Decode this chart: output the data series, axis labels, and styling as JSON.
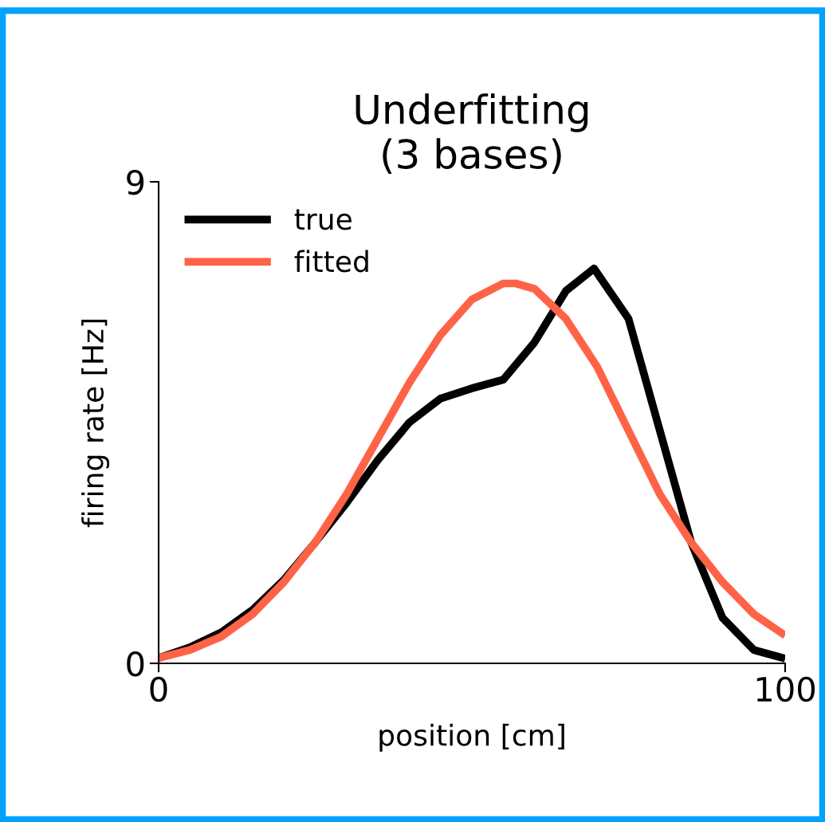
{
  "chart_data": {
    "type": "line",
    "title": "Underfitting\n(3 bases)",
    "xlabel": "position [cm]",
    "ylabel": "firing rate [Hz]",
    "xlim": [
      0,
      100
    ],
    "ylim": [
      0,
      9
    ],
    "xticks": [
      0,
      100
    ],
    "yticks": [
      0,
      9
    ],
    "grid": false,
    "legend": "top left",
    "marker": "none",
    "line_style": "solid",
    "series": [
      {
        "name": "true",
        "color": "#000000",
        "x": [
          0,
          5,
          10,
          15,
          20,
          25,
          30,
          35,
          40,
          45,
          50,
          55,
          60,
          65,
          69.5,
          75,
          80,
          85,
          90,
          95,
          100
        ],
        "values": [
          0.1,
          0.3,
          0.58,
          1.0,
          1.56,
          2.26,
          3.0,
          3.8,
          4.5,
          4.95,
          5.14,
          5.3,
          6.0,
          6.96,
          7.38,
          6.44,
          4.35,
          2.26,
          0.85,
          0.25,
          0.09
        ]
      },
      {
        "name": "fitted",
        "color": "#ff6347",
        "x": [
          0,
          5,
          10,
          15,
          20,
          25,
          30,
          35,
          40,
          45,
          50,
          55,
          57,
          60,
          65,
          70,
          75,
          80,
          85,
          90,
          95,
          100
        ],
        "values": [
          0.1,
          0.25,
          0.5,
          0.92,
          1.52,
          2.26,
          3.16,
          4.2,
          5.24,
          6.14,
          6.8,
          7.1,
          7.1,
          7.0,
          6.44,
          5.54,
          4.35,
          3.16,
          2.26,
          1.52,
          0.92,
          0.52
        ]
      }
    ]
  }
}
